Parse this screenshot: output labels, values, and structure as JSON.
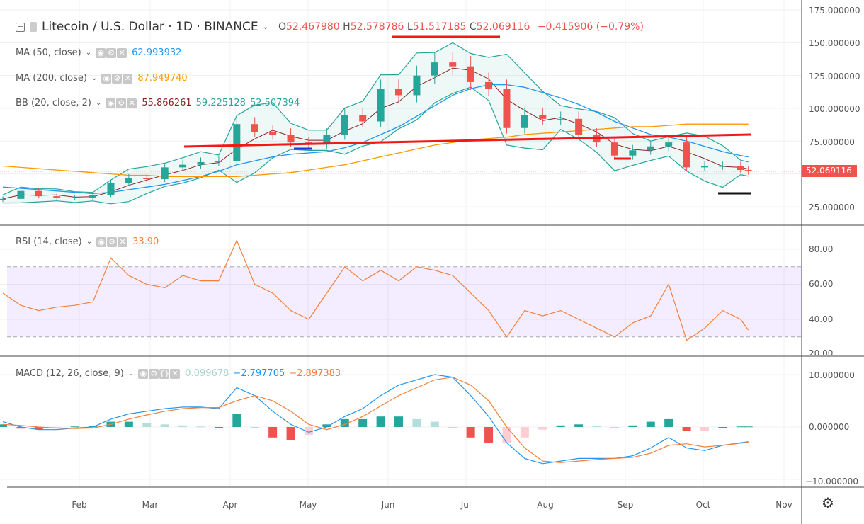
{
  "header": {
    "symbol": "Litecoin / U.S. Dollar · 1D · BINANCE",
    "open_label": "O",
    "open": "52.467980",
    "high_label": "H",
    "high": "52.578786",
    "low_label": "L",
    "low": "51.517185",
    "close_label": "C",
    "close": "52.069116",
    "change": "−0.415906 (−0.79%)"
  },
  "indicators": {
    "ma50": {
      "label": "MA (50, close)",
      "value": "62.993932",
      "color": "#2196f3"
    },
    "ma200": {
      "label": "MA (200, close)",
      "value": "87.949740",
      "color": "#ff9800"
    },
    "bb": {
      "label": "BB (20, close, 2)",
      "basis": "55.866261",
      "upper": "59.225128",
      "lower": "52.507394",
      "basis_color": "#872323",
      "band_color": "#26a69a"
    },
    "rsi": {
      "label": "RSI (14, close)",
      "value": "33.90",
      "color": "#f57f3a"
    },
    "macd": {
      "label": "MACD (12, 26, close, 9)",
      "hist": "0.099678",
      "macd": "−2.797705",
      "signal": "−2.897383"
    }
  },
  "icons": {
    "eye": "eye-icon",
    "gear": "gear-icon",
    "close": "close-icon",
    "settings": "gear-icon"
  },
  "price_axis": {
    "ticks": [
      "175.000000",
      "150.000000",
      "125.000000",
      "100.000000",
      "75.000000",
      "25.000000"
    ],
    "last_price": "52.069116"
  },
  "rsi_axis": {
    "ticks": [
      "80.00",
      "60.00",
      "40.00",
      "20.00"
    ]
  },
  "macd_axis": {
    "ticks": [
      "10.000000",
      "0.000000",
      "−10.000000"
    ]
  },
  "time_axis": {
    "ticks": [
      "Feb",
      "Mar",
      "Apr",
      "May",
      "Jun",
      "Jul",
      "Aug",
      "Sep",
      "Oct",
      "Nov"
    ]
  },
  "chart_data": {
    "type": "candlestick",
    "grid": true,
    "colors": {
      "up": "#26a69a",
      "down": "#ef5350"
    },
    "price_range": [
      10,
      180
    ],
    "rsi_range": [
      20,
      90
    ],
    "rsi_bands": [
      30,
      70
    ],
    "macd_range": [
      -11,
      13
    ],
    "dates": [
      "2019-01-01",
      "2019-01-08",
      "2019-01-15",
      "2019-01-22",
      "2019-01-29",
      "2019-02-05",
      "2019-02-12",
      "2019-02-19",
      "2019-02-26",
      "2019-03-05",
      "2019-03-12",
      "2019-03-19",
      "2019-03-26",
      "2019-04-02",
      "2019-04-09",
      "2019-04-16",
      "2019-04-23",
      "2019-04-30",
      "2019-05-07",
      "2019-05-14",
      "2019-05-21",
      "2019-05-28",
      "2019-06-04",
      "2019-06-11",
      "2019-06-18",
      "2019-06-25",
      "2019-07-02",
      "2019-07-09",
      "2019-07-16",
      "2019-07-23",
      "2019-07-30",
      "2019-08-06",
      "2019-08-13",
      "2019-08-20",
      "2019-08-27",
      "2019-09-03",
      "2019-09-10",
      "2019-09-17",
      "2019-09-24",
      "2019-10-01",
      "2019-10-08",
      "2019-10-15",
      "2019-10-18"
    ],
    "close": [
      31,
      37,
      33,
      32,
      32,
      34,
      43,
      47,
      46,
      55,
      57,
      59,
      60,
      88,
      82,
      80,
      74,
      73,
      80,
      95,
      90,
      115,
      110,
      125,
      135,
      132,
      120,
      115,
      85,
      95,
      92,
      92,
      80,
      74,
      64,
      68,
      71,
      74,
      55,
      56,
      56,
      53,
      52.07
    ],
    "ma50": [
      40,
      39,
      38,
      37,
      36,
      35,
      36,
      38,
      40,
      42,
      45,
      48,
      52,
      57,
      60,
      63,
      65,
      66,
      67,
      70,
      74,
      80,
      86,
      94,
      102,
      110,
      115,
      118,
      118,
      116,
      112,
      108,
      103,
      97,
      90,
      85,
      80,
      78,
      75,
      71,
      67,
      64,
      62.99
    ],
    "ma200": [
      56,
      55,
      54,
      53,
      52,
      51,
      50,
      49,
      49,
      48,
      48,
      48,
      48,
      48,
      49,
      50,
      51,
      53,
      55,
      57,
      60,
      63,
      66,
      69,
      72,
      74,
      76,
      77,
      78,
      80,
      81,
      82,
      83,
      84,
      85,
      86,
      86,
      87,
      88,
      88,
      88,
      88,
      87.95
    ],
    "rsi": [
      55,
      48,
      45,
      47,
      48,
      50,
      75,
      65,
      60,
      58,
      65,
      62,
      62,
      85,
      60,
      55,
      45,
      40,
      55,
      70,
      62,
      68,
      62,
      70,
      68,
      65,
      55,
      45,
      30,
      45,
      42,
      45,
      40,
      35,
      30,
      38,
      42,
      60,
      28,
      35,
      45,
      40,
      33.9
    ],
    "macd": [
      1,
      0,
      -0.5,
      -0.5,
      -0.2,
      0,
      1.5,
      2.5,
      3,
      3.5,
      3.8,
      3.8,
      3.5,
      7.5,
      6,
      3,
      0.5,
      -1,
      0,
      2,
      3.5,
      6,
      8,
      9,
      10,
      9.5,
      6,
      2,
      -3,
      -6,
      -7,
      -6.5,
      -6,
      -6,
      -6,
      -5.5,
      -4,
      -2,
      -4,
      -4.5,
      -3.5,
      -3,
      -2.8
    ],
    "signal": [
      0.5,
      0.3,
      0,
      -0.2,
      -0.3,
      -0.2,
      0.5,
      1.5,
      2.3,
      3,
      3.5,
      3.7,
      3.7,
      5,
      6,
      5,
      3,
      0.5,
      -0.5,
      0.5,
      2,
      4,
      6,
      7.5,
      9,
      9.5,
      8,
      5,
      0,
      -4,
      -6.5,
      -6.8,
      -6.5,
      -6.2,
      -6,
      -5.8,
      -5,
      -3.5,
      -3.2,
      -3.8,
      -3.5,
      -3.1,
      -2.9
    ]
  }
}
